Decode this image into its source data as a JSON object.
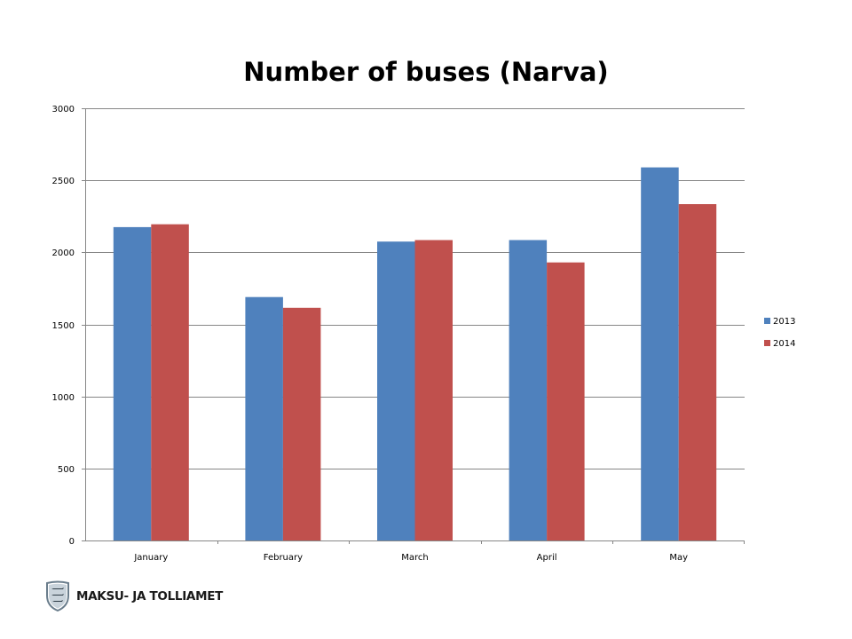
{
  "chart_data": {
    "type": "bar",
    "title": "Number of buses (Narva)",
    "xlabel": "",
    "ylabel": "",
    "categories": [
      "January",
      "February",
      "March",
      "April",
      "May"
    ],
    "series": [
      {
        "name": "2013",
        "color": "#4F81BD",
        "values": [
          2175,
          1690,
          2075,
          2085,
          2590
        ]
      },
      {
        "name": "2014",
        "color": "#C0504D",
        "values": [
          2195,
          1615,
          2085,
          1930,
          2335
        ]
      }
    ],
    "ylim": [
      0,
      3000
    ],
    "yticks": [
      0,
      500,
      1000,
      1500,
      2000,
      2500,
      3000
    ],
    "grid": true,
    "legend_position": "right"
  },
  "footer": {
    "logo_text": "MAKSU- JA TOLLIAMET",
    "logo_icon": "estonian-coat-of-arms-icon"
  }
}
